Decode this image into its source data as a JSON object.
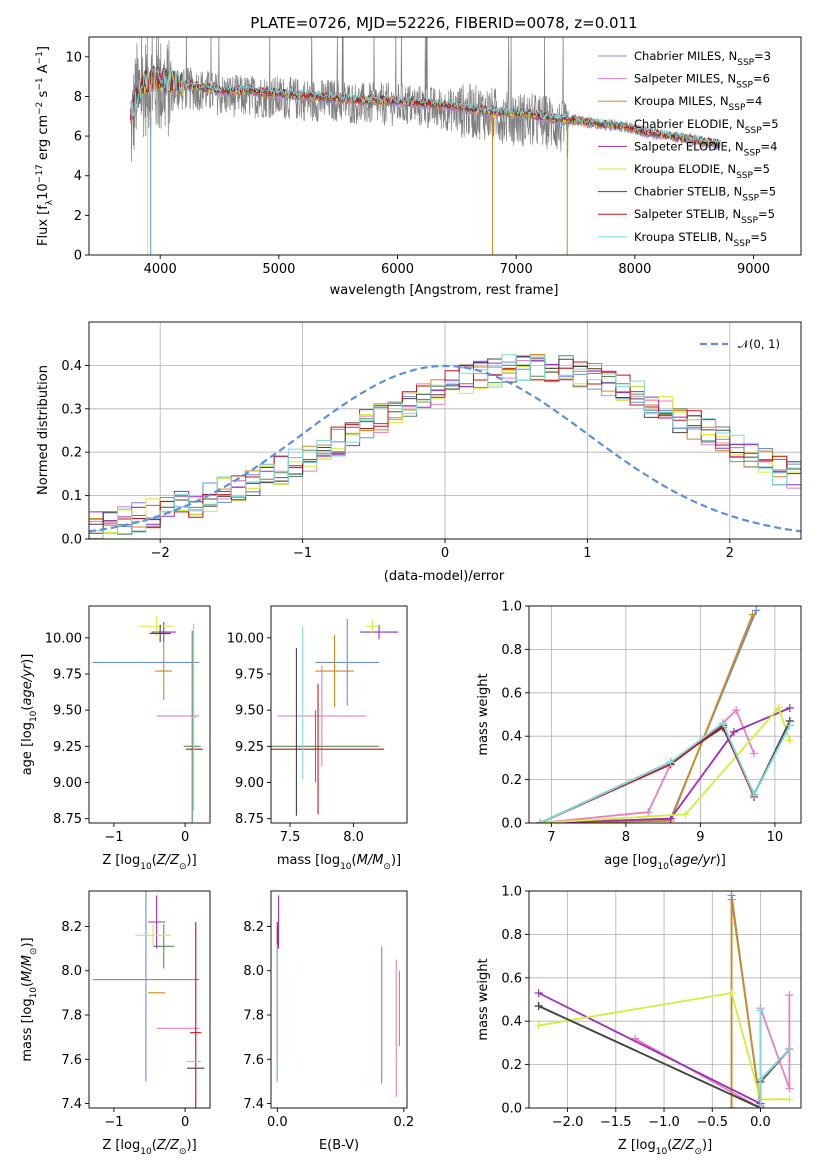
{
  "chart_data": [
    {
      "type": "line",
      "title": "PLATE=0726, MJD=52226, FIBERID=0078, z=0.011",
      "xlabel": "wavelength [Angstrom, rest frame]",
      "ylabel": "Flux [f_λ 10^-17 erg cm^-2 s^-1 A^-1]",
      "xlim": [
        3400,
        9400
      ],
      "ylim": [
        0,
        11
      ],
      "xticks": [
        4000,
        5000,
        6000,
        7000,
        8000,
        9000
      ],
      "yticks": [
        0,
        2,
        4,
        6,
        8,
        10
      ],
      "legend_position": "top-right",
      "data_series": {
        "name": "data",
        "color": "#808080",
        "x": [
          3750,
          3800,
          3900,
          4000,
          4100,
          4300,
          4500,
          4700,
          4900,
          5100,
          5300,
          5500,
          5700,
          5900,
          6100,
          6300,
          6500,
          6700,
          6900,
          7100,
          7300,
          7500
        ],
        "y": [
          6.0,
          8.2,
          8.6,
          8.5,
          8.3,
          8.4,
          8.1,
          8.0,
          8.0,
          7.9,
          7.8,
          7.8,
          7.6,
          7.6,
          7.6,
          7.4,
          7.3,
          7.2,
          7.0,
          6.8,
          6.7,
          6.0
        ]
      },
      "model_curve": {
        "x": [
          3750,
          3850,
          3950,
          4100,
          4300,
          4500,
          4700,
          4900,
          5100,
          5300,
          5500,
          5700,
          5900,
          6100,
          6300,
          6500,
          6700,
          6900,
          7100,
          7300,
          7500,
          7700,
          7900,
          8100,
          8300,
          8500,
          8700
        ],
        "y": [
          7.0,
          8.6,
          8.9,
          8.7,
          8.5,
          8.3,
          8.3,
          8.2,
          8.1,
          8.0,
          7.9,
          7.8,
          7.8,
          7.7,
          7.6,
          7.5,
          7.3,
          7.2,
          7.1,
          6.9,
          6.8,
          6.6,
          6.5,
          6.2,
          6.0,
          5.8,
          5.6
        ]
      },
      "series": [
        {
          "name": "Chabrier MILES, N_SSP=3",
          "label_main": "Chabrier MILES, N",
          "label_sub": "SSP",
          "label_tail": "=3",
          "color": "#6b8fd9"
        },
        {
          "name": "Salpeter MILES, N_SSP=6",
          "label_main": "Salpeter MILES, N",
          "label_sub": "SSP",
          "label_tail": "=6",
          "color": "#e87fc0"
        },
        {
          "name": "Kroupa MILES, N_SSP=4",
          "label_main": "Kroupa MILES, N",
          "label_sub": "SSP",
          "label_tail": "=4",
          "color": "#cc8a1f"
        },
        {
          "name": "Chabrier ELODIE, N_SSP=5",
          "label_main": "Chabrier ELODIE, N",
          "label_sub": "SSP",
          "label_tail": "=5",
          "color": "#5c8a5c"
        },
        {
          "name": "Salpeter ELODIE, N_SSP=4",
          "label_main": "Salpeter ELODIE, N",
          "label_sub": "SSP",
          "label_tail": "=4",
          "color": "#9b2fb8"
        },
        {
          "name": "Kroupa ELODIE, N_SSP=5",
          "label_main": "Kroupa ELODIE, N",
          "label_sub": "SSP",
          "label_tail": "=5",
          "color": "#d5ec3a"
        },
        {
          "name": "Chabrier STELIB, N_SSP=5",
          "label_main": "Chabrier STELIB, N",
          "label_sub": "SSP",
          "label_tail": "=5",
          "color": "#444444"
        },
        {
          "name": "Salpeter STELIB, N_SSP=5",
          "label_main": "Salpeter STELIB, N",
          "label_sub": "SSP",
          "label_tail": "=5",
          "color": "#c0141b"
        },
        {
          "name": "Kroupa STELIB, N_SSP=5",
          "label_main": "Kroupa STELIB, N",
          "label_sub": "SSP",
          "label_tail": "=5",
          "color": "#7fd9dc"
        }
      ]
    },
    {
      "type": "line",
      "subtype": "step-histogram",
      "xlabel": "(data-model)/error",
      "ylabel": "Normed distribution",
      "xlim": [
        -2.5,
        2.5
      ],
      "ylim": [
        0,
        0.5
      ],
      "xticks": [
        -2,
        -1,
        0,
        1,
        2
      ],
      "yticks": [
        0.0,
        0.1,
        0.2,
        0.3,
        0.4
      ],
      "grid": true,
      "legend_position": "top-right",
      "reference": {
        "name": "N(0,1)",
        "color": "#5b8fe0",
        "style": "dashed"
      },
      "bin_width": 0.1,
      "bin_start": -2.5,
      "envelope": [
        0.03,
        0.035,
        0.04,
        0.05,
        0.06,
        0.07,
        0.075,
        0.085,
        0.095,
        0.11,
        0.12,
        0.13,
        0.145,
        0.16,
        0.175,
        0.19,
        0.21,
        0.225,
        0.245,
        0.265,
        0.28,
        0.3,
        0.315,
        0.33,
        0.345,
        0.355,
        0.37,
        0.38,
        0.385,
        0.39,
        0.4,
        0.4,
        0.395,
        0.39,
        0.38,
        0.37,
        0.355,
        0.345,
        0.33,
        0.315,
        0.3,
        0.28,
        0.265,
        0.245,
        0.225,
        0.21,
        0.19,
        0.175,
        0.16,
        0.145
      ]
    },
    {
      "type": "scatter",
      "subtype": "errorbar",
      "xlabel": "Z [log10(Z/Z⊙)]",
      "ylabel": "age [log10(age/yr)]",
      "xlim": [
        -1.35,
        0.35
      ],
      "ylim": [
        8.72,
        10.22
      ],
      "xticks": [
        -1,
        0
      ],
      "yticks": [
        8.75,
        9.0,
        9.25,
        9.5,
        9.75,
        10.0
      ],
      "points": [
        {
          "series": 0,
          "x": -0.55,
          "y": 9.83,
          "xerr": 0.75,
          "yerr": 0.0
        },
        {
          "series": 1,
          "x": -0.1,
          "y": 9.46,
          "xerr": 0.3,
          "yerr": 0.0
        },
        {
          "series": 2,
          "x": -0.3,
          "y": 9.77,
          "xerr": 0.12,
          "yerr": 0.2
        },
        {
          "series": 3,
          "x": 0.1,
          "y": 9.25,
          "xerr": 0.12,
          "yerr": 0.8
        },
        {
          "series": 4,
          "x": -0.3,
          "y": 10.04,
          "xerr": 0.17,
          "yerr": 0.07
        },
        {
          "series": 5,
          "x": -0.4,
          "y": 10.08,
          "xerr": 0.25,
          "yerr": 0.07
        },
        {
          "series": 6,
          "x": -0.35,
          "y": 10.03,
          "xerr": 0.15,
          "yerr": 0.06
        },
        {
          "series": 7,
          "x": 0.13,
          "y": 9.23,
          "xerr": 0.12,
          "yerr": 0.0
        },
        {
          "series": 8,
          "x": 0.12,
          "y": 9.45,
          "xerr": 0.03,
          "yerr": 0.65
        }
      ]
    },
    {
      "type": "scatter",
      "subtype": "errorbar",
      "xlabel": "mass [log10(M/M⊙)]",
      "ylabel": "",
      "xlim": [
        7.35,
        8.42
      ],
      "ylim": [
        8.72,
        10.22
      ],
      "xticks": [
        7.5,
        8.0
      ],
      "yticks": [
        8.75,
        9.0,
        9.25,
        9.5,
        9.75,
        10.0
      ],
      "points": [
        {
          "series": 0,
          "x": 7.95,
          "y": 9.83,
          "xerr": 0.25,
          "yerr": 0.3
        },
        {
          "series": 1,
          "x": 7.75,
          "y": 9.46,
          "xerr": 0.35,
          "yerr": 0.35
        },
        {
          "series": 2,
          "x": 7.85,
          "y": 9.77,
          "xerr": 0.15,
          "yerr": 0.25
        },
        {
          "series": 3,
          "x": 7.7,
          "y": 9.25,
          "xerr": 0.5,
          "yerr": 0.25
        },
        {
          "series": 4,
          "x": 8.2,
          "y": 10.04,
          "xerr": 0.15,
          "yerr": 0.05
        },
        {
          "series": 5,
          "x": 8.15,
          "y": 10.08,
          "xerr": 0.05,
          "yerr": 0.05
        },
        {
          "series": 6,
          "x": 7.55,
          "y": 9.35,
          "xerr": 0.0,
          "yerr": 0.58
        },
        {
          "series": 7,
          "x": 7.72,
          "y": 9.23,
          "xerr": 0.52,
          "yerr": 0.45
        },
        {
          "series": 8,
          "x": 7.6,
          "y": 9.55,
          "xerr": 0.0,
          "yerr": 0.53
        }
      ]
    },
    {
      "type": "line",
      "xlabel": "age [log10(age/yr)]",
      "ylabel": "mass weight",
      "xlim": [
        6.7,
        10.35
      ],
      "ylim": [
        0,
        1.0
      ],
      "xticks": [
        7,
        8,
        9,
        10
      ],
      "yticks": [
        0.0,
        0.2,
        0.4,
        0.6,
        0.8,
        1.0
      ],
      "grid": true,
      "series_points": [
        {
          "series": 0,
          "x": [
            6.85,
            8.6,
            9.75
          ],
          "y": [
            0.0,
            0.02,
            0.98
          ]
        },
        {
          "series": 1,
          "x": [
            6.85,
            8.3,
            8.6,
            9.3,
            9.48,
            9.72
          ],
          "y": [
            0.0,
            0.05,
            0.27,
            0.46,
            0.52,
            0.32
          ]
        },
        {
          "series": 2,
          "x": [
            6.85,
            8.6,
            9.7
          ],
          "y": [
            0.0,
            0.01,
            0.96
          ]
        },
        {
          "series": 3,
          "x": [
            6.85,
            8.6,
            9.3,
            9.72,
            10.2
          ],
          "y": [
            0.0,
            0.28,
            0.45,
            0.13,
            0.47
          ]
        },
        {
          "series": 4,
          "x": [
            6.85,
            8.6,
            9.45,
            10.2
          ],
          "y": [
            0.0,
            0.02,
            0.42,
            0.53
          ]
        },
        {
          "series": 5,
          "x": [
            6.85,
            8.8,
            10.05,
            10.2
          ],
          "y": [
            0.0,
            0.04,
            0.53,
            0.38
          ]
        },
        {
          "series": 6,
          "x": [
            6.85,
            8.6,
            9.3,
            9.72,
            10.2
          ],
          "y": [
            0.0,
            0.28,
            0.44,
            0.13,
            0.47
          ]
        },
        {
          "series": 7,
          "x": [
            6.85,
            8.6,
            9.3,
            9.72
          ],
          "y": [
            0.0,
            0.27,
            0.45,
            0.12
          ]
        },
        {
          "series": 8,
          "x": [
            6.85,
            8.6,
            9.3,
            9.72,
            10.2
          ],
          "y": [
            0.0,
            0.28,
            0.46,
            0.13,
            0.45
          ]
        }
      ]
    },
    {
      "type": "scatter",
      "subtype": "errorbar",
      "xlabel": "Z [log10(Z/Z⊙)]",
      "ylabel": "mass [log10(M/M⊙)]",
      "xlim": [
        -1.35,
        0.35
      ],
      "ylim": [
        7.38,
        8.36
      ],
      "xticks": [
        -1,
        0
      ],
      "yticks": [
        7.4,
        7.6,
        7.8,
        8.0,
        8.2
      ],
      "points": [
        {
          "series": 0,
          "x": -0.55,
          "y": 7.96,
          "xerr": 0.75,
          "yerr": 0.46
        },
        {
          "series": 1,
          "x": -0.1,
          "y": 7.74,
          "xerr": 0.3,
          "yerr": 0.0
        },
        {
          "series": 2,
          "x": -0.4,
          "y": 7.9,
          "xerr": 0.12,
          "yerr": 0.0
        },
        {
          "series": 3,
          "x": -0.3,
          "y": 8.11,
          "xerr": 0.15,
          "yerr": 0.1
        },
        {
          "series": 4,
          "x": -0.4,
          "y": 8.22,
          "xerr": 0.12,
          "yerr": 0.12
        },
        {
          "series": 5,
          "x": -0.45,
          "y": 8.16,
          "xerr": 0.25,
          "yerr": 0.05
        },
        {
          "series": 6,
          "x": 0.15,
          "y": 7.56,
          "xerr": 0.12,
          "yerr": 0.0
        },
        {
          "series": 7,
          "x": 0.15,
          "y": 7.72,
          "xerr": 0.08,
          "yerr": 0.5
        },
        {
          "series": 8,
          "x": 0.12,
          "y": 7.59,
          "xerr": 0.1,
          "yerr": 0.0
        }
      ]
    },
    {
      "type": "scatter",
      "subtype": "errorbar",
      "xlabel": "E(B-V)",
      "ylabel": "",
      "xlim": [
        -0.01,
        0.205
      ],
      "ylim": [
        7.38,
        8.36
      ],
      "xticks": [
        0.0,
        0.2
      ],
      "yticks": [
        7.4,
        7.6,
        7.8,
        8.0,
        8.2
      ],
      "points": [
        {
          "series": 0,
          "x": 0.165,
          "y": 7.8,
          "xerr": 0.0,
          "yerr": 0.31
        },
        {
          "series": 1,
          "x": 0.188,
          "y": 7.74,
          "xerr": 0.0,
          "yerr": 0.31
        },
        {
          "series": 2,
          "x": 0.193,
          "y": 7.83,
          "xerr": 0.0,
          "yerr": 0.17
        },
        {
          "series": 3,
          "x": 0.0,
          "y": 7.9,
          "xerr": 0.0,
          "yerr": 0.3
        },
        {
          "series": 4,
          "x": 0.002,
          "y": 8.22,
          "xerr": 0.0,
          "yerr": 0.12
        },
        {
          "series": 5,
          "x": 0.0,
          "y": 7.8,
          "xerr": 0.0,
          "yerr": 0.3
        },
        {
          "series": 6,
          "x": 0.0,
          "y": 7.8,
          "xerr": 0.0,
          "yerr": 0.3
        },
        {
          "series": 7,
          "x": 0.0,
          "y": 8.17,
          "xerr": 0.0,
          "yerr": 0.05
        },
        {
          "series": 8,
          "x": 0.0,
          "y": 7.8,
          "xerr": 0.0,
          "yerr": 0.3
        }
      ]
    },
    {
      "type": "line",
      "xlabel": "Z [log10(Z/Z⊙)]",
      "ylabel": "mass weight",
      "xlim": [
        -2.4,
        0.42
      ],
      "ylim": [
        0,
        1.0
      ],
      "xticks": [
        -2.0,
        -1.5,
        -1.0,
        -0.5,
        0.0
      ],
      "yticks": [
        0.0,
        0.2,
        0.4,
        0.6,
        0.8,
        1.0
      ],
      "grid": true,
      "series_points": [
        {
          "series": 0,
          "x": [
            -0.3,
            -0.3,
            0.0,
            0.0,
            0.3
          ],
          "y": [
            0.0,
            0.98,
            0.0,
            0.13,
            0.27
          ]
        },
        {
          "series": 1,
          "x": [
            -1.3,
            0.0,
            0.0,
            0.3,
            0.3
          ],
          "y": [
            0.32,
            0.0,
            0.46,
            0.09,
            0.52
          ]
        },
        {
          "series": 2,
          "x": [
            -0.3,
            -0.3,
            0.0
          ],
          "y": [
            0.0,
            0.96,
            0.01
          ]
        },
        {
          "series": 3,
          "x": [
            -2.3,
            0.0,
            0.0,
            0.3
          ],
          "y": [
            0.47,
            0.0,
            0.12,
            0.27
          ]
        },
        {
          "series": 4,
          "x": [
            -2.3,
            0.0,
            0.0
          ],
          "y": [
            0.53,
            0.02,
            0.0
          ]
        },
        {
          "series": 5,
          "x": [
            -2.3,
            -0.3,
            0.0,
            0.3
          ],
          "y": [
            0.38,
            0.53,
            0.04,
            0.04
          ]
        },
        {
          "series": 6,
          "x": [
            -2.3,
            0.0,
            0.0,
            0.3
          ],
          "y": [
            0.47,
            0.0,
            0.12,
            0.27
          ]
        },
        {
          "series": 7,
          "x": [
            0.0,
            0.0,
            0.3
          ],
          "y": [
            0.0,
            0.13,
            0.27
          ]
        },
        {
          "series": 8,
          "x": [
            0.0,
            0.0,
            0.0,
            0.3
          ],
          "y": [
            0.0,
            0.45,
            0.13,
            0.27
          ]
        }
      ]
    }
  ]
}
